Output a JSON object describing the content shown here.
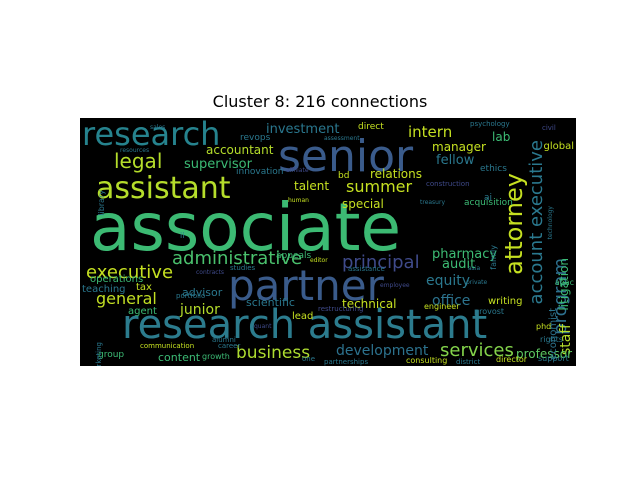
{
  "chart_data": {
    "type": "wordcloud",
    "title": "Cluster 8: 216 connections",
    "background": "#000000",
    "words": [
      {
        "text": "associate",
        "color": "#3cba73"
      },
      {
        "text": "research assistant",
        "color": "#2c7c8e"
      },
      {
        "text": "senior",
        "color": "#3a5b8b"
      },
      {
        "text": "partner",
        "color": "#3a5b8b"
      },
      {
        "text": "research",
        "color": "#26838e"
      },
      {
        "text": "assistant",
        "color": "#b5dd2b"
      },
      {
        "text": "attorney",
        "color": "#c5e021"
      },
      {
        "text": "legal",
        "color": "#b5dd2b"
      },
      {
        "text": "executive",
        "color": "#c5e021"
      },
      {
        "text": "account executive",
        "color": "#2a788e"
      },
      {
        "text": "program",
        "color": "#2d708e"
      },
      {
        "text": "administrative",
        "color": "#4ac16d"
      },
      {
        "text": "principal",
        "color": "#3f4a8a"
      },
      {
        "text": "business",
        "color": "#addc30"
      },
      {
        "text": "services",
        "color": "#84d44b"
      },
      {
        "text": "development",
        "color": "#2c728e"
      },
      {
        "text": "general",
        "color": "#c2df23"
      },
      {
        "text": "summer",
        "color": "#c5e021"
      },
      {
        "text": "intern",
        "color": "#c5e021"
      },
      {
        "text": "investment",
        "color": "#2a778e"
      },
      {
        "text": "staff",
        "color": "#b5dd2b"
      },
      {
        "text": "equity",
        "color": "#2a788e"
      },
      {
        "text": "office",
        "color": "#2c738e"
      },
      {
        "text": "junior",
        "color": "#b5dd2b"
      },
      {
        "text": "litigation",
        "color": "#3cbb75"
      },
      {
        "text": "accountant",
        "color": "#b5dd2b"
      },
      {
        "text": "supervisor",
        "color": "#3cbb75"
      },
      {
        "text": "fellow",
        "color": "#2a788e"
      },
      {
        "text": "lab",
        "color": "#3dbc74"
      },
      {
        "text": "relations",
        "color": "#c5e021"
      },
      {
        "text": "manager",
        "color": "#c5e021"
      },
      {
        "text": "pharmacy",
        "color": "#3dbc74"
      },
      {
        "text": "audit",
        "color": "#3dbc74"
      },
      {
        "text": "technical",
        "color": "#c5e021"
      },
      {
        "text": "special",
        "color": "#c5e021"
      },
      {
        "text": "talent",
        "color": "#c5e021"
      },
      {
        "text": "content",
        "color": "#3cbb75"
      },
      {
        "text": "professor",
        "color": "#5ec962"
      },
      {
        "text": "scientific",
        "color": "#2a788e"
      },
      {
        "text": "advisor",
        "color": "#2a788e"
      },
      {
        "text": "operations",
        "color": "#3cbb75"
      },
      {
        "text": "teaching",
        "color": "#2a788e"
      },
      {
        "text": "tax",
        "color": "#c5e021"
      },
      {
        "text": "agent",
        "color": "#3cbb75"
      },
      {
        "text": "lead",
        "color": "#c5e021"
      },
      {
        "text": "writing",
        "color": "#c5e021"
      },
      {
        "text": "economist",
        "color": "#2c738e"
      },
      {
        "text": "global",
        "color": "#c5e021"
      },
      {
        "text": "acquisition",
        "color": "#3cbb75"
      },
      {
        "text": "ethics",
        "color": "#2a788e"
      },
      {
        "text": "group",
        "color": "#3cbb75"
      },
      {
        "text": "growth",
        "color": "#3cbb75"
      },
      {
        "text": "direct",
        "color": "#c5e021"
      },
      {
        "text": "revops",
        "color": "#2a788e"
      },
      {
        "text": "innovation",
        "color": "#2a788e"
      },
      {
        "text": "library",
        "color": "#2a788e"
      },
      {
        "text": "bd",
        "color": "#c5e021"
      },
      {
        "text": "ai",
        "color": "#2a788e"
      },
      {
        "text": "appeals",
        "color": "#3cbb75"
      },
      {
        "text": "family",
        "color": "#2a788e"
      },
      {
        "text": "ii",
        "color": "#2a788e"
      },
      {
        "text": "portfolio",
        "color": "#2a788e"
      },
      {
        "text": "alumni",
        "color": "#2a788e"
      },
      {
        "text": "studies",
        "color": "#2a788e"
      },
      {
        "text": "assistance",
        "color": "#2a788e"
      },
      {
        "text": "engineer",
        "color": "#c5e021"
      },
      {
        "text": "provost",
        "color": "#2a788e"
      },
      {
        "text": "phd",
        "color": "#c5e021"
      },
      {
        "text": "apac",
        "color": "#3cbb75"
      },
      {
        "text": "rights",
        "color": "#2a788e"
      },
      {
        "text": "support",
        "color": "#2a788e"
      },
      {
        "text": "director",
        "color": "#c5e021"
      },
      {
        "text": "consulting",
        "color": "#c5e021"
      },
      {
        "text": "district",
        "color": "#2a788e"
      },
      {
        "text": "partnerships",
        "color": "#2a788e"
      },
      {
        "text": "one",
        "color": "#2a788e"
      },
      {
        "text": "career",
        "color": "#2a788e"
      },
      {
        "text": "communication",
        "color": "#c5e021"
      },
      {
        "text": "marketing",
        "color": "#2a788e"
      },
      {
        "text": "psychology",
        "color": "#2a788e"
      },
      {
        "text": "civil",
        "color": "#3f4a8a"
      },
      {
        "text": "resources",
        "color": "#2a788e"
      },
      {
        "text": "assessment",
        "color": "#2a788e"
      },
      {
        "text": "human",
        "color": "#c5e021"
      },
      {
        "text": "treasury",
        "color": "#2a788e"
      },
      {
        "text": "construction",
        "color": "#3f4a8a"
      },
      {
        "text": "technology",
        "color": "#2a788e"
      },
      {
        "text": "editor",
        "color": "#c5e021"
      },
      {
        "text": "asia",
        "color": "#2a788e"
      },
      {
        "text": "private",
        "color": "#2a788e"
      },
      {
        "text": "employee",
        "color": "#3f4a8a"
      },
      {
        "text": "contracts",
        "color": "#3f4a8a"
      },
      {
        "text": "restructuring",
        "color": "#3f4a8a"
      },
      {
        "text": "affiliate",
        "color": "#3f4a8a"
      },
      {
        "text": "sales",
        "color": "#2a788e"
      },
      {
        "text": "quant",
        "color": "#3f4a8a"
      }
    ]
  }
}
